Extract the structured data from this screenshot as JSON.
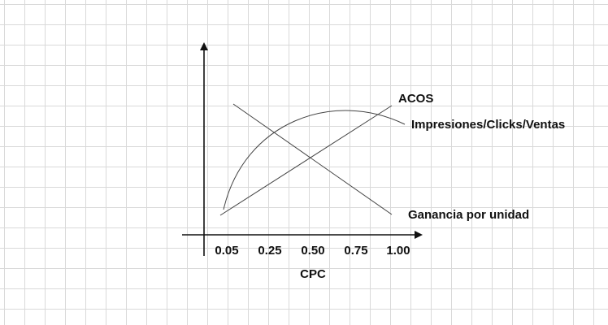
{
  "diagram": {
    "x_axis_label": "CPC",
    "x_ticks": [
      "0.05",
      "0.25",
      "0.50",
      "0.75",
      "1.00"
    ],
    "curve_labels": {
      "acos": "ACOS",
      "impressions": "Impresiones/Clicks/Ventas",
      "profit": "Ganancia por unidad"
    },
    "colors": {
      "axis": "#111111",
      "curve": "#444444",
      "grid": "#d9d9d9"
    }
  }
}
